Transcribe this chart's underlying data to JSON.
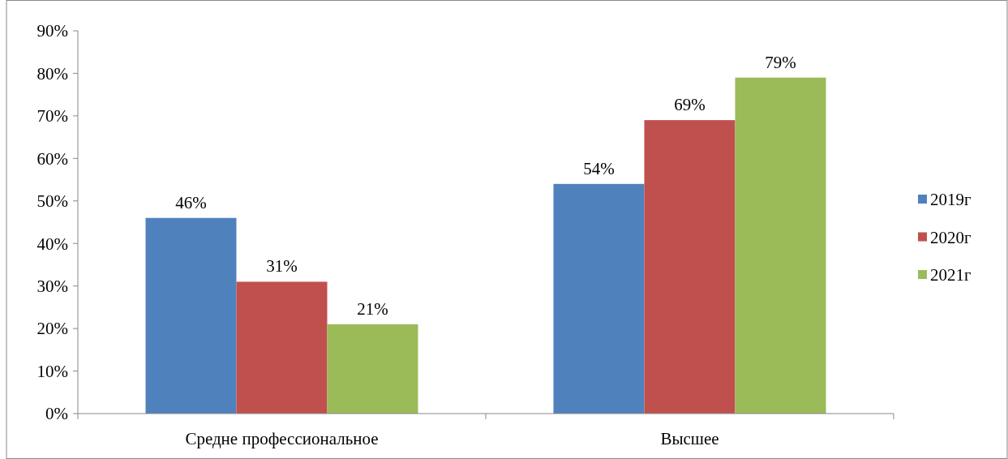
{
  "chart_data": {
    "type": "bar",
    "categories": [
      "Средне профессиональное",
      "Высшее"
    ],
    "series": [
      {
        "name": "2019г",
        "color": "#4f81bd",
        "values": [
          46,
          54
        ],
        "value_labels": [
          "46%",
          "54%"
        ]
      },
      {
        "name": "2020г",
        "color": "#c0504d",
        "values": [
          31,
          69
        ],
        "value_labels": [
          "31%",
          "69%"
        ]
      },
      {
        "name": "2021г",
        "color": "#9bbb59",
        "values": [
          21,
          79
        ],
        "value_labels": [
          "21%",
          "79%"
        ]
      }
    ],
    "ylim": [
      0,
      90
    ],
    "yticks": [
      {
        "value": 0,
        "label": "0%"
      },
      {
        "value": 10,
        "label": "10%"
      },
      {
        "value": 20,
        "label": "20%"
      },
      {
        "value": 30,
        "label": "30%"
      },
      {
        "value": 40,
        "label": "40%"
      },
      {
        "value": 50,
        "label": "50%"
      },
      {
        "value": 60,
        "label": "60%"
      },
      {
        "value": 70,
        "label": "70%"
      },
      {
        "value": 80,
        "label": "80%"
      },
      {
        "value": 90,
        "label": "90%"
      }
    ],
    "grid": false,
    "legend": "right"
  }
}
